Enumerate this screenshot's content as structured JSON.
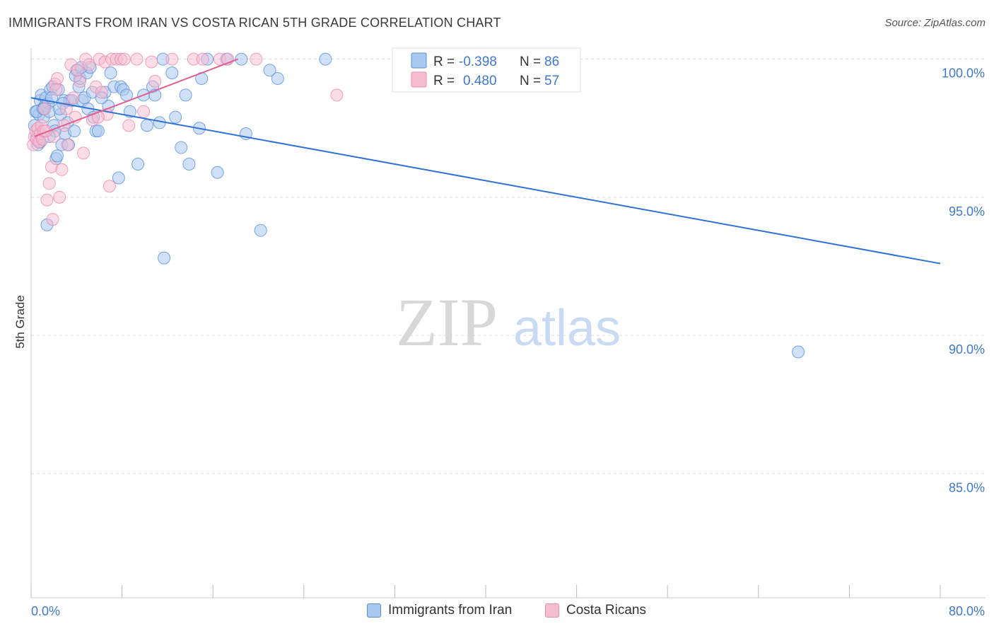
{
  "header": {
    "title": "IMMIGRANTS FROM IRAN VS COSTA RICAN 5TH GRADE CORRELATION CHART",
    "source": "Source: ZipAtlas.com"
  },
  "watermark": {
    "zip": "ZIP",
    "atlas": "atlas"
  },
  "legend_box": {
    "rows": [
      {
        "r_label": "R = ",
        "r_value": "-0.398",
        "n_label": "N = ",
        "n_value": "86"
      },
      {
        "r_label": "R = ",
        "r_value": "0.480",
        "n_label": "N = ",
        "n_value": "57"
      }
    ]
  },
  "legend_bottom": {
    "iran": "Immigrants from Iran",
    "costa": "Costa Ricans"
  },
  "colors": {
    "iran_fill": "#a9c8f0",
    "iran_stroke": "#5a8fd8",
    "iran_line": "#2f72d6",
    "costa_fill": "#f6bcd0",
    "costa_stroke": "#e98bb0",
    "costa_line": "#e0608f",
    "axis_text": "#3f78cf",
    "grid": "#d9d9d9"
  },
  "chart_data": {
    "type": "scatter",
    "title": "IMMIGRANTS FROM IRAN VS COSTA RICAN 5TH GRADE CORRELATION CHART",
    "xlabel": "",
    "ylabel": "5th Grade",
    "xlim": [
      0,
      80
    ],
    "ylim": [
      80.5,
      100.4
    ],
    "x_tick_labels": [
      "0.0%",
      "80.0%"
    ],
    "y_ticks": [
      85,
      90,
      95,
      100
    ],
    "y_tick_labels": [
      "85.0%",
      "90.0%",
      "95.0%",
      "100.0%"
    ],
    "grid": true,
    "series": [
      {
        "name": "Immigrants from Iran",
        "r": -0.398,
        "n": 86,
        "trend": {
          "x": [
            0,
            80
          ],
          "y": [
            98.6,
            92.6
          ]
        },
        "points": [
          [
            0.3,
            97.6
          ],
          [
            0.4,
            98.1
          ],
          [
            0.5,
            97.2
          ],
          [
            0.6,
            96.9
          ],
          [
            0.7,
            98.0
          ],
          [
            0.8,
            98.5
          ],
          [
            0.9,
            98.7
          ],
          [
            1.0,
            98.2
          ],
          [
            1.1,
            97.9
          ],
          [
            1.2,
            98.3
          ],
          [
            1.3,
            98.6
          ],
          [
            1.4,
            94.0
          ],
          [
            1.5,
            98.4
          ],
          [
            1.6,
            98.1
          ],
          [
            1.7,
            98.9
          ],
          [
            1.9,
            99.0
          ],
          [
            2.0,
            97.6
          ],
          [
            2.2,
            96.4
          ],
          [
            2.3,
            96.5
          ],
          [
            2.4,
            98.9
          ],
          [
            2.6,
            98.0
          ],
          [
            2.7,
            96.9
          ],
          [
            2.9,
            98.5
          ],
          [
            3.0,
            97.3
          ],
          [
            3.2,
            97.7
          ],
          [
            3.4,
            98.5
          ],
          [
            3.6,
            98.5
          ],
          [
            3.8,
            97.4
          ],
          [
            4.0,
            99.6
          ],
          [
            4.2,
            99.0
          ],
          [
            4.3,
            99.3
          ],
          [
            4.5,
            98.5
          ],
          [
            4.7,
            98.6
          ],
          [
            4.9,
            99.5
          ],
          [
            5.0,
            98.2
          ],
          [
            5.2,
            99.7
          ],
          [
            5.5,
            97.9
          ],
          [
            5.7,
            97.4
          ],
          [
            5.9,
            97.4
          ],
          [
            6.5,
            98.8
          ],
          [
            6.8,
            98.3
          ],
          [
            7.0,
            99.5
          ],
          [
            7.3,
            99.0
          ],
          [
            7.7,
            95.7
          ],
          [
            7.9,
            99.0
          ],
          [
            8.1,
            98.9
          ],
          [
            8.4,
            98.7
          ],
          [
            8.7,
            98.1
          ],
          [
            9.4,
            96.2
          ],
          [
            9.9,
            98.7
          ],
          [
            10.2,
            97.6
          ],
          [
            10.7,
            99.0
          ],
          [
            10.9,
            98.7
          ],
          [
            11.3,
            97.7
          ],
          [
            11.6,
            100.0
          ],
          [
            11.7,
            92.8
          ],
          [
            12.4,
            99.5
          ],
          [
            12.7,
            97.9
          ],
          [
            13.2,
            96.8
          ],
          [
            13.6,
            98.7
          ],
          [
            13.9,
            96.2
          ],
          [
            14.8,
            97.5
          ],
          [
            15.0,
            99.3
          ],
          [
            15.5,
            100.0
          ],
          [
            16.4,
            95.9
          ],
          [
            17.2,
            100.0
          ],
          [
            18.5,
            100.0
          ],
          [
            18.9,
            97.3
          ],
          [
            20.2,
            93.8
          ],
          [
            21.0,
            99.6
          ],
          [
            21.7,
            99.3
          ],
          [
            25.9,
            100.0
          ],
          [
            67.5,
            89.4
          ],
          [
            0.5,
            98.1
          ],
          [
            1.8,
            98.6
          ],
          [
            2.8,
            98.4
          ],
          [
            3.9,
            99.4
          ],
          [
            4.4,
            99.7
          ],
          [
            5.4,
            98.8
          ],
          [
            6.2,
            98.6
          ],
          [
            1.1,
            98.2
          ],
          [
            2.1,
            97.4
          ],
          [
            3.3,
            96.9
          ],
          [
            0.8,
            97.0
          ],
          [
            1.6,
            97.2
          ],
          [
            2.5,
            98.2
          ]
        ]
      },
      {
        "name": "Costa Ricans",
        "r": 0.48,
        "n": 57,
        "trend": {
          "x": [
            0.3,
            18.2
          ],
          "y": [
            97.2,
            100.0
          ]
        },
        "points": [
          [
            0.2,
            96.9
          ],
          [
            0.3,
            97.2
          ],
          [
            0.4,
            97.4
          ],
          [
            0.5,
            97.1
          ],
          [
            0.6,
            97.5
          ],
          [
            0.7,
            97.0
          ],
          [
            0.8,
            97.3
          ],
          [
            0.9,
            97.6
          ],
          [
            1.0,
            97.1
          ],
          [
            1.1,
            97.4
          ],
          [
            1.2,
            98.2
          ],
          [
            1.4,
            94.9
          ],
          [
            1.6,
            95.5
          ],
          [
            1.8,
            96.1
          ],
          [
            1.9,
            94.2
          ],
          [
            2.0,
            97.2
          ],
          [
            2.1,
            99.1
          ],
          [
            2.3,
            99.3
          ],
          [
            2.5,
            95.0
          ],
          [
            2.7,
            96.0
          ],
          [
            2.9,
            97.6
          ],
          [
            3.2,
            96.9
          ],
          [
            3.5,
            99.8
          ],
          [
            3.7,
            98.6
          ],
          [
            3.9,
            97.9
          ],
          [
            4.1,
            99.6
          ],
          [
            4.3,
            99.2
          ],
          [
            4.6,
            96.6
          ],
          [
            4.8,
            100.0
          ],
          [
            5.1,
            99.8
          ],
          [
            5.4,
            97.8
          ],
          [
            5.7,
            99.0
          ],
          [
            6.0,
            100.0
          ],
          [
            6.2,
            98.8
          ],
          [
            6.5,
            99.9
          ],
          [
            6.7,
            98.0
          ],
          [
            6.9,
            95.4
          ],
          [
            7.1,
            100.0
          ],
          [
            7.5,
            100.0
          ],
          [
            7.9,
            100.0
          ],
          [
            8.2,
            100.0
          ],
          [
            8.6,
            97.6
          ],
          [
            9.3,
            100.0
          ],
          [
            9.9,
            98.1
          ],
          [
            10.6,
            99.9
          ],
          [
            10.9,
            99.2
          ],
          [
            12.4,
            100.0
          ],
          [
            14.3,
            100.0
          ],
          [
            15.1,
            100.0
          ],
          [
            16.6,
            100.0
          ],
          [
            17.3,
            100.0
          ],
          [
            19.8,
            100.0
          ],
          [
            26.9,
            98.7
          ],
          [
            1.3,
            97.4
          ],
          [
            2.2,
            98.9
          ],
          [
            3.1,
            98.2
          ],
          [
            5.9,
            97.9
          ]
        ]
      }
    ]
  }
}
